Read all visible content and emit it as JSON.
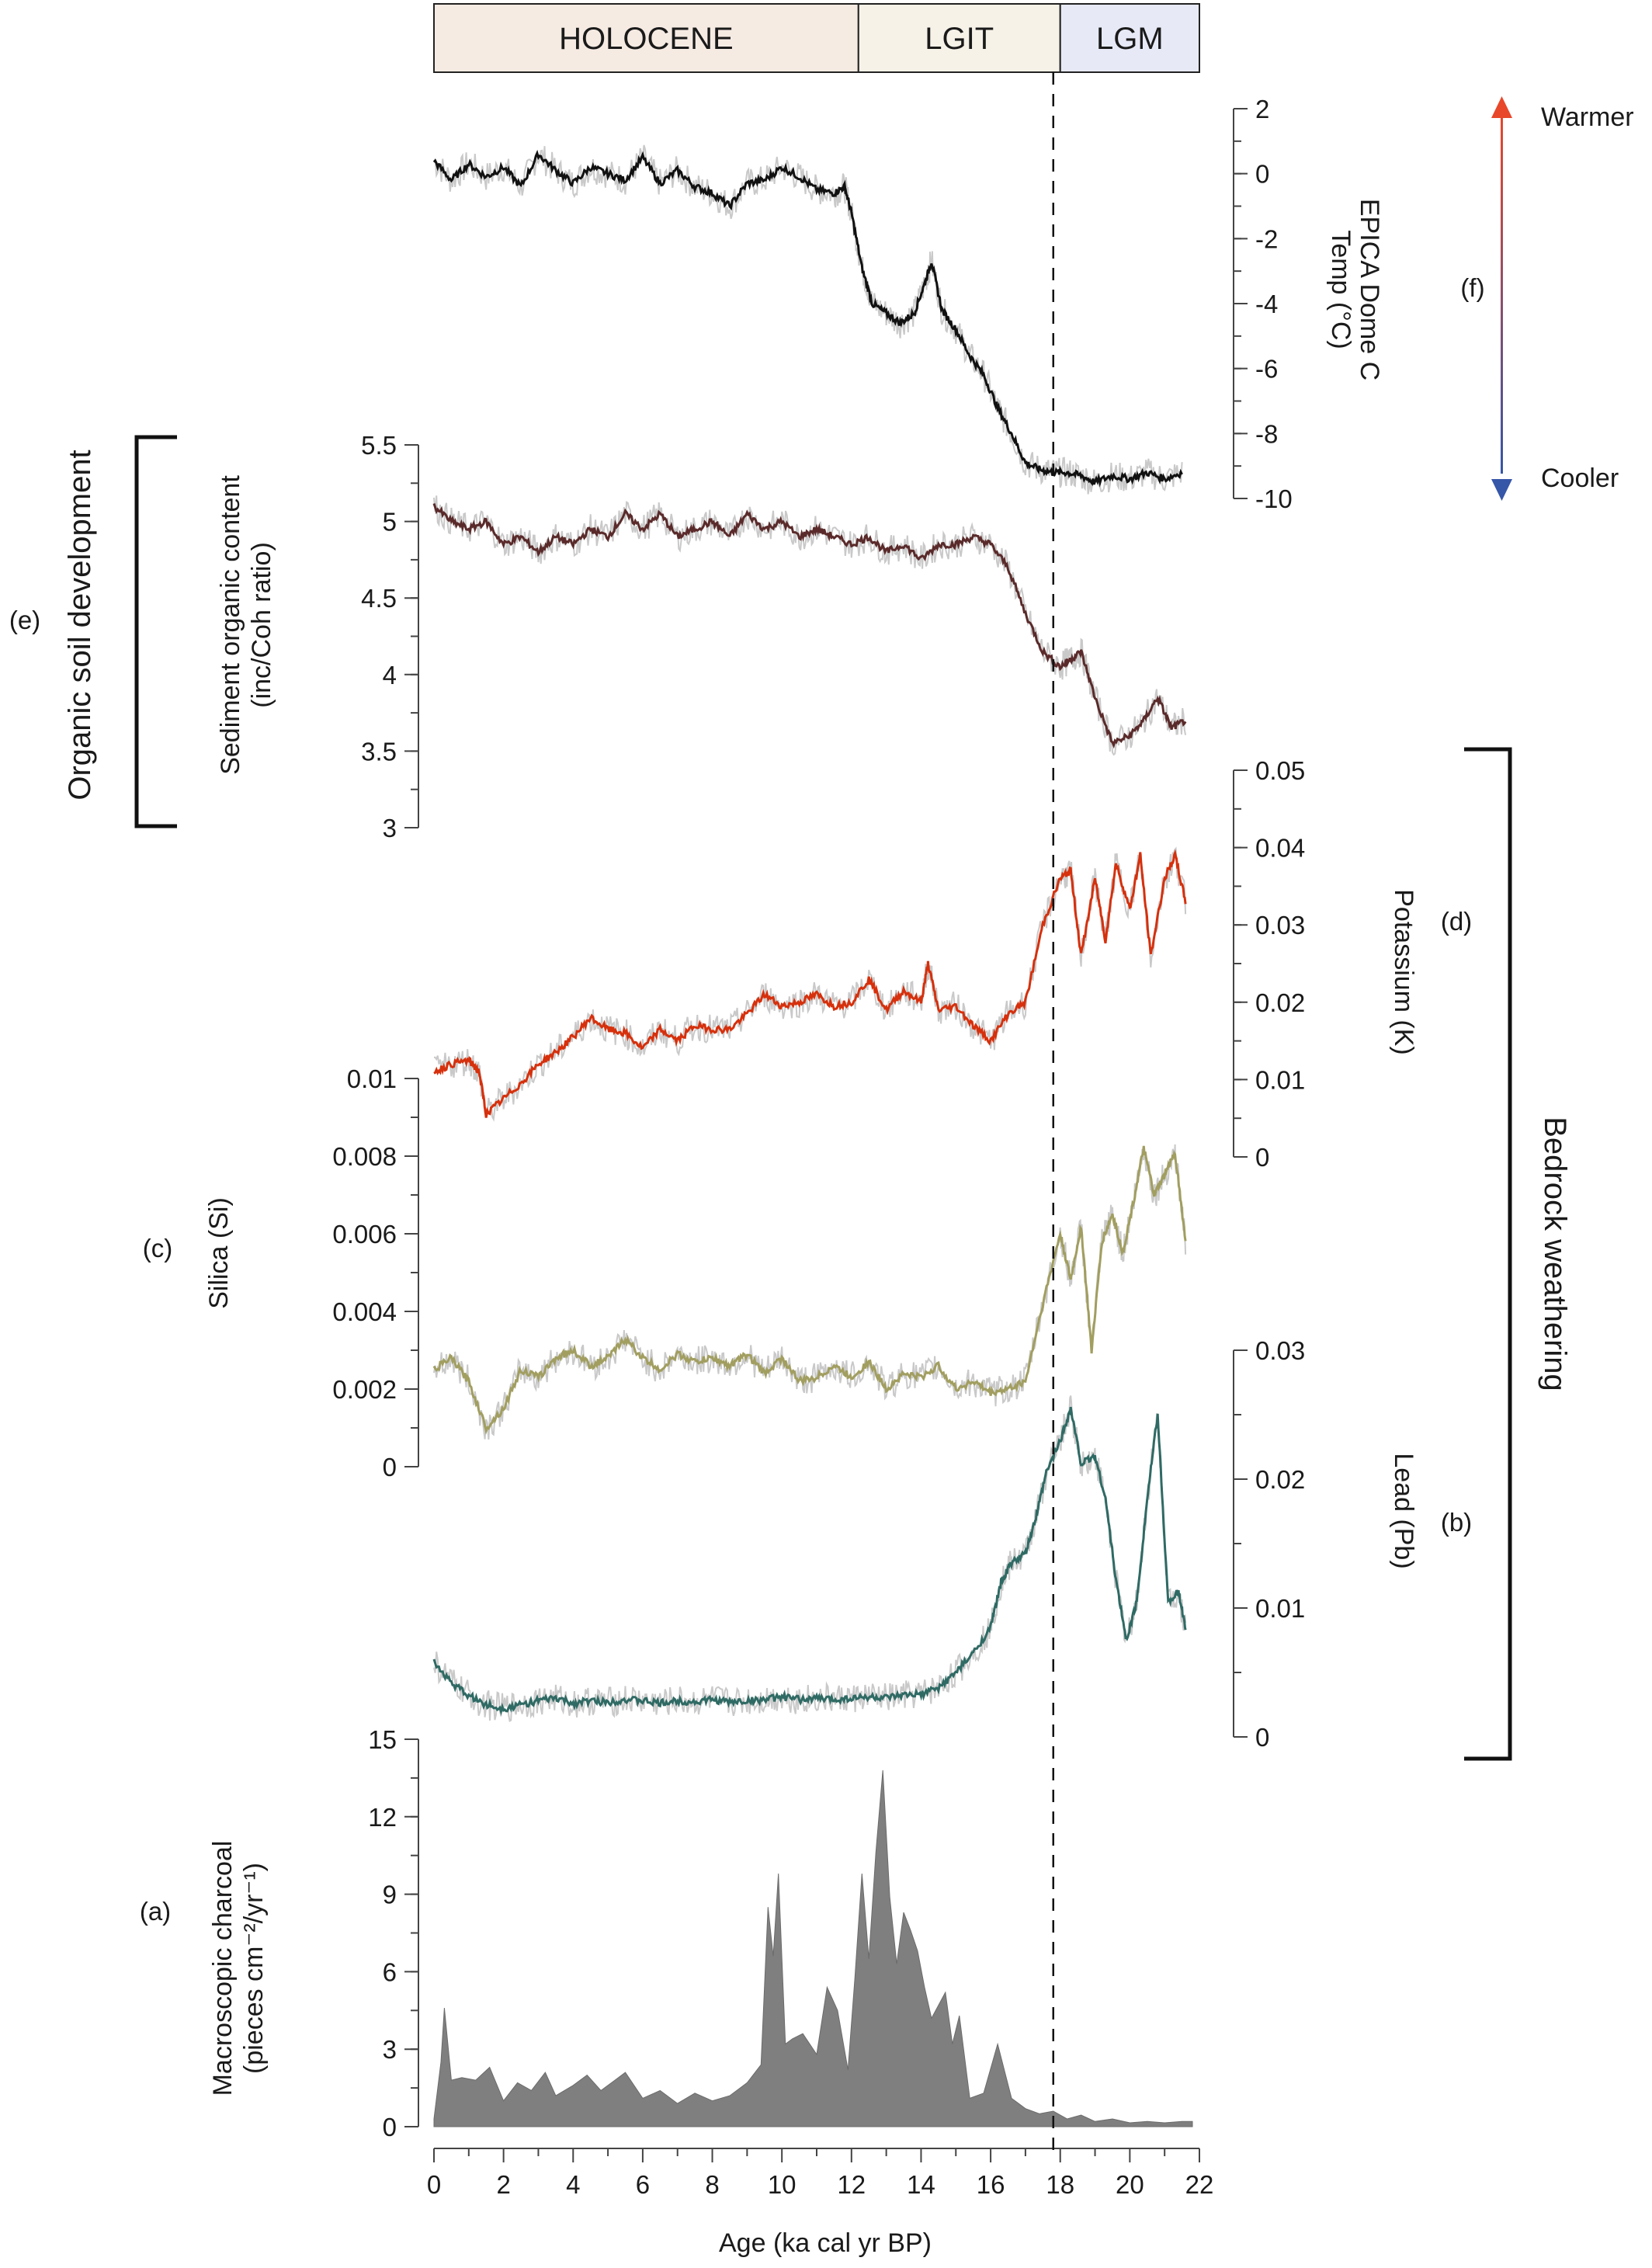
{
  "periods": [
    {
      "label": "HOLOCENE",
      "from": 0,
      "to": 12.2,
      "color": "#f6ebe3"
    },
    {
      "label": "LGIT",
      "from": 12.2,
      "to": 18,
      "color": "#f6f2e8"
    },
    {
      "label": "LGM",
      "from": 18,
      "to": 22,
      "color": "#e7eaf6"
    }
  ],
  "labels": {
    "x_axis_title": "Age (ka cal yr BP)",
    "f_title_1": "EPICA Dome C",
    "f_title_2": "Temp (°C)",
    "f_letter": "(f)",
    "warmer": "Warmer",
    "cooler": "Cooler",
    "e_title_1": "Sediment organic content",
    "e_title_2": "(inc/Coh ratio)",
    "e_letter": "(e)",
    "organic": "Organic soil development",
    "d_title": "Potassium (K)",
    "d_letter": "(d)",
    "bedrock": "Bedrock weathering",
    "c_title": "Silica (Si)",
    "c_letter": "(c)",
    "b_title": "Lead (Pb)",
    "b_letter": "(b)",
    "a_title_1": "Macroscopic charcoal",
    "a_title_2": "(pieces cm⁻²/yr⁻¹)",
    "a_letter": "(a)"
  },
  "chart_data": [
    {
      "id": "f",
      "type": "line",
      "ylabel": "EPICA Dome C Temp (°C)",
      "ylim": [
        -10,
        2
      ],
      "yticks": [
        2,
        0,
        -2,
        -4,
        -6,
        -8,
        -10
      ],
      "ytick_labels": [
        "2",
        "0",
        "-2",
        "-4",
        "-6",
        "-8",
        "-10"
      ],
      "color": "#111111",
      "x": [
        0,
        0.5,
        1,
        1.5,
        2,
        2.5,
        3,
        3.5,
        4,
        4.5,
        5,
        5.5,
        6,
        6.5,
        7,
        7.5,
        8,
        8.5,
        9,
        9.5,
        10,
        10.5,
        11,
        11.5,
        11.8,
        12,
        12.3,
        12.6,
        13,
        13.4,
        13.8,
        14.1,
        14.3,
        14.6,
        15,
        15.4,
        15.8,
        16.2,
        16.6,
        17,
        17.4,
        17.8,
        18.2,
        18.6,
        19,
        19.5,
        20,
        20.5,
        21,
        21.5
      ],
      "y": [
        0.4,
        -0.2,
        0.3,
        -0.1,
        0.2,
        -0.4,
        0.6,
        0.1,
        -0.3,
        0.2,
        0.0,
        -0.2,
        0.5,
        -0.3,
        0.1,
        -0.4,
        -0.6,
        -1.0,
        -0.3,
        -0.2,
        0.2,
        -0.1,
        -0.5,
        -0.6,
        -0.4,
        -1.2,
        -2.9,
        -4.0,
        -4.3,
        -4.6,
        -4.3,
        -3.4,
        -2.7,
        -4.2,
        -4.8,
        -5.6,
        -6.2,
        -7.2,
        -8.0,
        -8.9,
        -9.1,
        -9.2,
        -9.2,
        -9.3,
        -9.5,
        -9.3,
        -9.4,
        -9.2,
        -9.4,
        -9.2
      ]
    },
    {
      "id": "e",
      "type": "line",
      "ylabel": "Sediment organic content (inc/Coh ratio)",
      "ylim": [
        3,
        5.5
      ],
      "yticks": [
        5.5,
        5,
        4.5,
        4,
        3.5,
        3
      ],
      "ytick_labels": [
        "5.5",
        "5",
        "4.5",
        "4",
        "3.5",
        "3"
      ],
      "color": "#5a2a2a",
      "x": [
        0,
        0.5,
        1,
        1.5,
        2,
        2.5,
        3,
        3.5,
        4,
        4.5,
        5,
        5.5,
        6,
        6.5,
        7,
        7.5,
        8,
        8.5,
        9,
        9.5,
        10,
        10.5,
        11,
        11.5,
        12,
        12.5,
        13,
        13.5,
        14,
        14.5,
        15,
        15.5,
        16,
        16.5,
        17,
        17.5,
        18,
        18.3,
        18.6,
        19,
        19.5,
        20,
        20.4,
        20.8,
        21.2,
        21.6
      ],
      "y": [
        5.1,
        5.0,
        4.95,
        5.0,
        4.85,
        4.9,
        4.8,
        4.9,
        4.85,
        4.95,
        4.9,
        5.05,
        4.95,
        5.05,
        4.9,
        4.95,
        5.0,
        4.9,
        5.05,
        4.95,
        5.0,
        4.9,
        4.95,
        4.9,
        4.85,
        4.9,
        4.8,
        4.85,
        4.75,
        4.85,
        4.85,
        4.9,
        4.85,
        4.7,
        4.4,
        4.15,
        4.05,
        4.1,
        4.15,
        3.85,
        3.55,
        3.6,
        3.7,
        3.85,
        3.65,
        3.7
      ]
    },
    {
      "id": "d",
      "type": "line",
      "ylabel": "Potassium (K)",
      "ylim": [
        0,
        0.05
      ],
      "yticks": [
        0.05,
        0.04,
        0.03,
        0.02,
        0.01,
        0
      ],
      "ytick_labels": [
        "0.05",
        "0.04",
        "0.03",
        "0.02",
        "0.01",
        "0"
      ],
      "color": "#d6300c",
      "x": [
        0,
        0.5,
        1,
        1.3,
        1.5,
        2,
        2.5,
        3,
        3.5,
        4,
        4.5,
        5,
        5.5,
        6,
        6.5,
        7,
        7.5,
        8,
        8.5,
        9,
        9.5,
        10,
        10.5,
        11,
        11.5,
        12,
        12.5,
        13,
        13.5,
        14,
        14.2,
        14.5,
        15,
        15.5,
        16,
        16.5,
        17,
        17.5,
        18,
        18.3,
        18.6,
        19,
        19.3,
        19.6,
        20,
        20.3,
        20.6,
        21,
        21.3,
        21.6
      ],
      "y": [
        0.011,
        0.012,
        0.0125,
        0.011,
        0.0055,
        0.0075,
        0.0095,
        0.012,
        0.0135,
        0.0155,
        0.018,
        0.0165,
        0.016,
        0.014,
        0.0165,
        0.015,
        0.017,
        0.0165,
        0.0165,
        0.0185,
        0.021,
        0.0195,
        0.02,
        0.021,
        0.0195,
        0.02,
        0.023,
        0.019,
        0.0215,
        0.02,
        0.025,
        0.019,
        0.0195,
        0.017,
        0.015,
        0.0185,
        0.02,
        0.03,
        0.036,
        0.037,
        0.026,
        0.036,
        0.028,
        0.038,
        0.032,
        0.039,
        0.026,
        0.036,
        0.039,
        0.033
      ]
    },
    {
      "id": "c",
      "type": "line",
      "ylabel": "Silica (Si)",
      "ylim": [
        0,
        0.01
      ],
      "yticks": [
        0.01,
        0.008,
        0.006,
        0.004,
        0.002,
        0
      ],
      "ytick_labels": [
        "0.01",
        "0.008",
        "0.006",
        "0.004",
        "0.002",
        "0"
      ],
      "color": "#a19e60",
      "x": [
        0,
        0.5,
        1,
        1.5,
        2,
        2.5,
        3,
        3.5,
        4,
        4.5,
        5,
        5.5,
        6,
        6.5,
        7,
        7.5,
        8,
        8.5,
        9,
        9.5,
        10,
        10.5,
        11,
        11.5,
        12,
        12.5,
        13,
        13.5,
        14,
        14.5,
        15,
        15.5,
        16,
        16.5,
        17,
        17.5,
        18,
        18.3,
        18.6,
        18.9,
        19.2,
        19.5,
        19.8,
        20.1,
        20.4,
        20.7,
        21,
        21.3,
        21.6
      ],
      "y": [
        0.0025,
        0.0028,
        0.0022,
        0.001,
        0.0015,
        0.0025,
        0.0023,
        0.0028,
        0.003,
        0.0026,
        0.0028,
        0.0033,
        0.0028,
        0.0025,
        0.0029,
        0.0027,
        0.0028,
        0.0026,
        0.0029,
        0.0024,
        0.0028,
        0.0022,
        0.0023,
        0.0026,
        0.0023,
        0.0027,
        0.002,
        0.0024,
        0.0023,
        0.0026,
        0.002,
        0.0022,
        0.0019,
        0.002,
        0.0022,
        0.0042,
        0.006,
        0.0048,
        0.0062,
        0.003,
        0.0058,
        0.0065,
        0.0055,
        0.0068,
        0.0082,
        0.007,
        0.0075,
        0.0081,
        0.0058
      ]
    },
    {
      "id": "b",
      "type": "line",
      "ylabel": "Lead (Pb)",
      "ylim": [
        0,
        0.03
      ],
      "yticks": [
        0.03,
        0.02,
        0.01,
        0
      ],
      "ytick_labels": [
        "0.03",
        "0.02",
        "0.01",
        "0"
      ],
      "color": "#2f6a64",
      "x": [
        0,
        0.5,
        1,
        1.5,
        2,
        2.5,
        3,
        3.5,
        4,
        4.5,
        5,
        5.5,
        6,
        6.5,
        7,
        7.5,
        8,
        8.5,
        9,
        9.5,
        10,
        10.5,
        11,
        11.5,
        12,
        12.5,
        13,
        13.5,
        14,
        14.5,
        15,
        15.5,
        16,
        16.3,
        16.6,
        17,
        17.3,
        17.6,
        18,
        18.3,
        18.6,
        19,
        19.3,
        19.6,
        19.9,
        20.2,
        20.5,
        20.8,
        21.1,
        21.4,
        21.6
      ],
      "y": [
        0.0058,
        0.0042,
        0.0032,
        0.0025,
        0.0022,
        0.0025,
        0.0028,
        0.003,
        0.0026,
        0.0028,
        0.0027,
        0.0029,
        0.0028,
        0.0026,
        0.0028,
        0.0027,
        0.0029,
        0.0027,
        0.0028,
        0.0029,
        0.0031,
        0.0029,
        0.003,
        0.0029,
        0.003,
        0.0031,
        0.003,
        0.0032,
        0.0033,
        0.0038,
        0.005,
        0.0065,
        0.0085,
        0.012,
        0.0135,
        0.0142,
        0.017,
        0.0205,
        0.023,
        0.0255,
        0.0212,
        0.0218,
        0.0185,
        0.0122,
        0.0075,
        0.0105,
        0.0185,
        0.025,
        0.0105,
        0.0112,
        0.0085
      ]
    },
    {
      "id": "a",
      "type": "area",
      "ylabel": "Macroscopic charcoal (pieces cm⁻²/yr⁻¹)",
      "ylim": [
        0,
        15
      ],
      "yticks": [
        15,
        12,
        9,
        6,
        3,
        0
      ],
      "ytick_labels": [
        "15",
        "12",
        "9",
        "6",
        "3",
        "0"
      ],
      "color": "#7f7f7f",
      "x": [
        0,
        0.2,
        0.3,
        0.5,
        0.8,
        1.2,
        1.6,
        2,
        2.4,
        2.8,
        3.2,
        3.5,
        4,
        4.4,
        4.8,
        5.2,
        5.5,
        6,
        6.5,
        7,
        7.5,
        8,
        8.5,
        9,
        9.4,
        9.6,
        9.75,
        9.9,
        10.1,
        10.3,
        10.6,
        11,
        11.3,
        11.6,
        11.9,
        12.1,
        12.3,
        12.5,
        12.7,
        12.9,
        13.1,
        13.3,
        13.5,
        13.7,
        13.9,
        14.1,
        14.3,
        14.5,
        14.7,
        14.9,
        15.1,
        15.4,
        15.8,
        16.2,
        16.6,
        17,
        17.4,
        17.8,
        18.2,
        18.6,
        19,
        19.5,
        20,
        20.5,
        21,
        21.5,
        21.8
      ],
      "y": [
        0.3,
        2.5,
        4.6,
        1.8,
        1.9,
        1.8,
        2.3,
        1.0,
        1.7,
        1.4,
        2.1,
        1.2,
        1.6,
        2.0,
        1.4,
        1.8,
        2.1,
        1.1,
        1.4,
        0.9,
        1.3,
        1.0,
        1.2,
        1.7,
        2.4,
        8.5,
        6.6,
        9.8,
        3.2,
        3.4,
        3.6,
        2.8,
        5.4,
        4.5,
        2.2,
        5.8,
        9.8,
        6.5,
        10.6,
        13.8,
        8.9,
        6.3,
        8.3,
        7.6,
        6.8,
        5.4,
        4.2,
        4.7,
        5.2,
        3.2,
        4.3,
        1.1,
        1.3,
        3.2,
        1.1,
        0.7,
        0.5,
        0.6,
        0.3,
        0.45,
        0.2,
        0.3,
        0.15,
        0.2,
        0.15,
        0.2,
        0.2
      ]
    }
  ],
  "x_axis": {
    "xlim": [
      0,
      22
    ],
    "ticks": [
      "0",
      "2",
      "4",
      "6",
      "8",
      "10",
      "12",
      "14",
      "16",
      "18",
      "20",
      "22"
    ]
  },
  "marker": {
    "x": 17.8,
    "style": "dashed"
  }
}
